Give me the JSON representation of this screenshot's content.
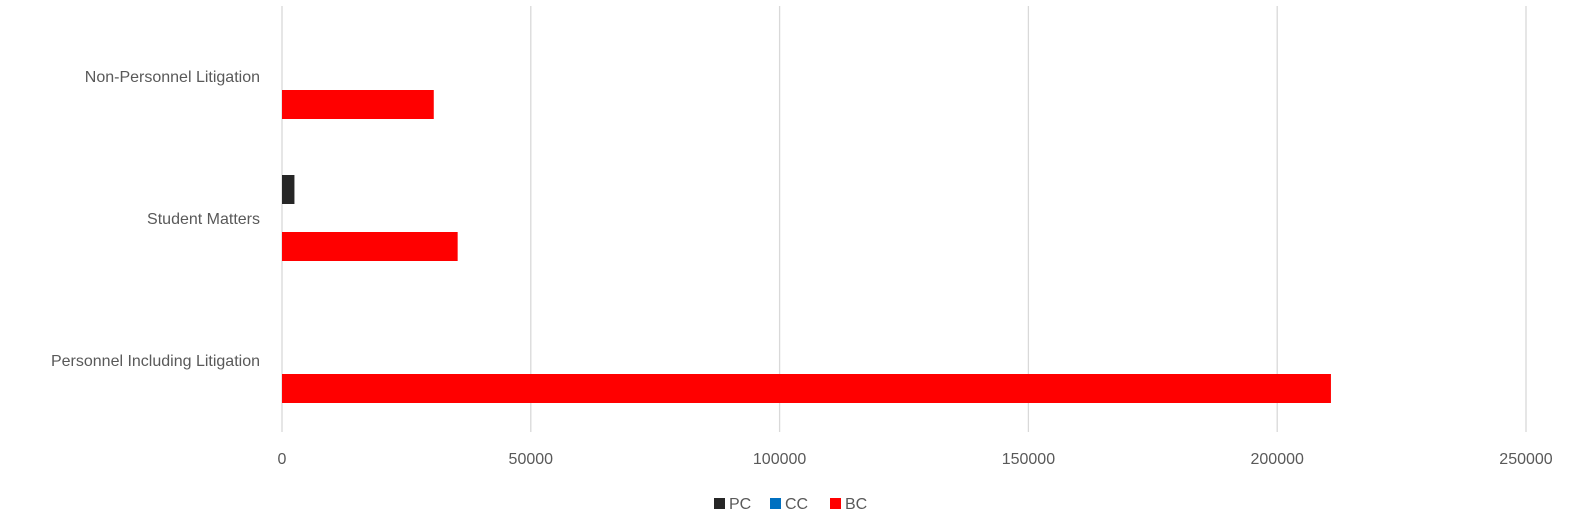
{
  "chart_data": {
    "type": "bar",
    "orientation": "horizontal",
    "title": "",
    "xlabel": "",
    "ylabel": "",
    "categories": [
      "Personnel Including Litigation",
      "Student Matters",
      "Non-Personnel Litigation"
    ],
    "series": [
      {
        "name": "PC",
        "color": "#262626",
        "values": [
          0,
          2500,
          0
        ]
      },
      {
        "name": "CC",
        "color": "#0070c0",
        "values": [
          0,
          0,
          0
        ]
      },
      {
        "name": "BC",
        "color": "#ff0000",
        "values": [
          210800,
          35300,
          30500
        ]
      }
    ],
    "xlim": [
      0,
      250000
    ],
    "x_ticks": [
      "0",
      "50000",
      "100000",
      "150000",
      "200000",
      "250000"
    ],
    "grid": true,
    "legend": "bottom"
  }
}
